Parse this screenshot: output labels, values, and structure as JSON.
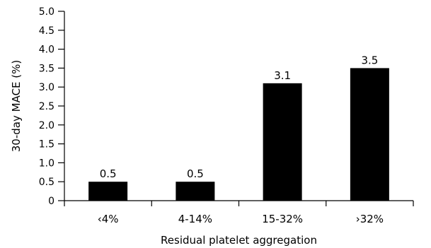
{
  "chart_data": {
    "type": "bar",
    "categories": [
      "‹4%",
      "4-14%",
      "15-32%",
      "›32%"
    ],
    "values": [
      0.5,
      0.5,
      3.1,
      3.5
    ],
    "data_labels": [
      "0.5",
      "0.5",
      "3.1",
      "3.5"
    ],
    "xlabel": "Residual platelet aggregation",
    "ylabel": "30-day MACE (%)",
    "ylim": [
      0,
      5.0
    ],
    "yticks": [
      "0",
      "0.5",
      "1.0",
      "1.5",
      "2.0",
      "2.5",
      "3.0",
      "3.5",
      "4.0",
      "4.5",
      "5.0"
    ],
    "grid": false,
    "bar_color": "#000000"
  }
}
